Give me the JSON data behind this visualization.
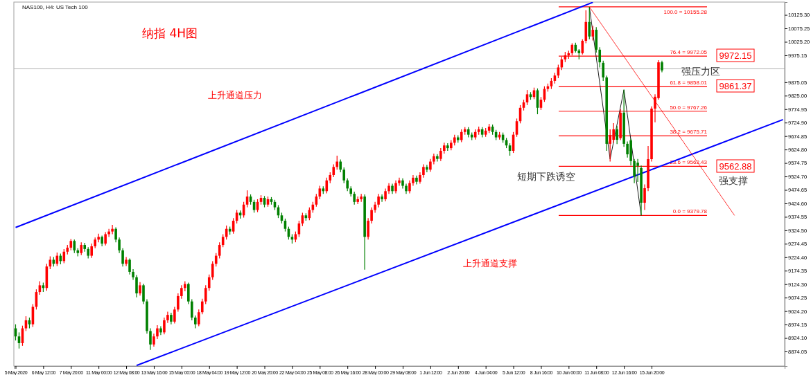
{
  "chart_data": {
    "type": "candlestick",
    "title": "纳指 4H图",
    "subtitle": "NAS100, H4: US Tech 100",
    "categories": [
      "5 May 2020",
      null,
      null,
      null,
      null,
      null,
      null,
      null,
      "6 May 12:00",
      null,
      null,
      null,
      null,
      null,
      null,
      null,
      "7 May 20:00",
      null,
      null,
      null,
      null,
      null,
      null,
      null,
      "11 May 00:00",
      null,
      null,
      null,
      null,
      null,
      null,
      null,
      "12 May 08:00",
      null,
      null,
      null,
      null,
      null,
      null,
      null,
      "13 May 16:00",
      null,
      null,
      null,
      null,
      null,
      null,
      null,
      "15 May 00:00",
      null,
      null,
      null,
      null,
      null,
      null,
      null,
      "18 May 04:00",
      null,
      null,
      null,
      null,
      null,
      null,
      null,
      "19 May 12:00",
      null,
      null,
      null,
      null,
      null,
      null,
      null,
      "20 May 20:00",
      null,
      null,
      null,
      null,
      null,
      null,
      null,
      "22 May 04:00",
      null,
      null,
      null,
      null,
      null,
      null,
      null,
      "25 May 08:00",
      null,
      null,
      null,
      null,
      null,
      null,
      null,
      "26 May 16:00",
      null,
      null,
      null,
      null,
      null,
      null,
      null,
      "28 May 00:00",
      null,
      null,
      null,
      null,
      null,
      null,
      null,
      "29 May 08:00",
      null,
      null,
      null,
      null,
      null,
      null,
      null,
      "1 Jun 12:00",
      null,
      null,
      null,
      null,
      null,
      null,
      null,
      "2 Jun 20:00",
      null,
      null,
      null,
      null,
      null,
      null,
      null,
      "4 Jun 04:00",
      null,
      null,
      null,
      null,
      null,
      null,
      null,
      "5 Jun 12:00",
      null,
      null,
      null,
      null,
      null,
      null,
      null,
      "8 Jun 16:00",
      null,
      null,
      null,
      null,
      null,
      null,
      null,
      "10 Jun 00:00",
      null,
      null,
      null,
      null,
      null,
      null,
      null,
      "11 Jun 08:00",
      null,
      null,
      null,
      null,
      null,
      null,
      null,
      "12 Jun 16:00",
      null,
      null,
      null,
      null,
      null,
      null,
      null,
      "15 Jun 20:00",
      null,
      null,
      null,
      null,
      null,
      null,
      null,
      null,
      null,
      null,
      null,
      null,
      null,
      null,
      null,
      null,
      null,
      null,
      null,
      null,
      null,
      null,
      null,
      null,
      null,
      null,
      null,
      null,
      null,
      null,
      null,
      null,
      null,
      null,
      null,
      null,
      null,
      null
    ],
    "ohlc": [
      [
        8960,
        8975,
        8915,
        8930
      ],
      [
        8930,
        8945,
        8885,
        8905
      ],
      [
        8905,
        8970,
        8895,
        8960
      ],
      [
        8960,
        9005,
        8950,
        8990
      ],
      [
        8990,
        9000,
        8960,
        8975
      ],
      [
        8975,
        9050,
        8965,
        9040
      ],
      [
        9040,
        9105,
        9030,
        9095
      ],
      [
        9095,
        9135,
        9085,
        9120
      ],
      [
        9120,
        9130,
        9095,
        9110
      ],
      [
        9110,
        9200,
        9100,
        9190
      ],
      [
        9190,
        9228,
        9180,
        9215
      ],
      [
        9215,
        9225,
        9190,
        9200
      ],
      [
        9200,
        9242,
        9192,
        9230
      ],
      [
        9230,
        9238,
        9198,
        9210
      ],
      [
        9210,
        9255,
        9202,
        9245
      ],
      [
        9245,
        9270,
        9235,
        9260
      ],
      [
        9260,
        9292,
        9250,
        9285
      ],
      [
        9285,
        9290,
        9240,
        9250
      ],
      [
        9250,
        9258,
        9228,
        9240
      ],
      [
        9240,
        9280,
        9232,
        9270
      ],
      [
        9270,
        9278,
        9245,
        9255
      ],
      [
        9255,
        9262,
        9220,
        9230
      ],
      [
        9230,
        9275,
        9222,
        9265
      ],
      [
        9265,
        9298,
        9258,
        9290
      ],
      [
        9290,
        9312,
        9280,
        9300
      ],
      [
        9300,
        9305,
        9265,
        9275
      ],
      [
        9275,
        9318,
        9268,
        9310
      ],
      [
        9310,
        9330,
        9300,
        9320
      ],
      [
        9320,
        9345,
        9310,
        9330
      ],
      [
        9330,
        9336,
        9280,
        9290
      ],
      [
        9290,
        9298,
        9240,
        9250
      ],
      [
        9250,
        9258,
        9190,
        9200
      ],
      [
        9200,
        9225,
        9192,
        9215
      ],
      [
        9215,
        9220,
        9160,
        9170
      ],
      [
        9170,
        9180,
        9140,
        9150
      ],
      [
        9150,
        9158,
        9075,
        9090
      ],
      [
        9090,
        9132,
        9082,
        9120
      ],
      [
        9120,
        9126,
        9050,
        9060
      ],
      [
        9060,
        9068,
        8940,
        8950
      ],
      [
        8950,
        8960,
        8880,
        8900
      ],
      [
        8900,
        8940,
        8892,
        8930
      ],
      [
        8930,
        8972,
        8920,
        8960
      ],
      [
        8960,
        8968,
        8935,
        8945
      ],
      [
        8945,
        9000,
        8938,
        8990
      ],
      [
        8990,
        9022,
        8980,
        9010
      ],
      [
        9010,
        9018,
        8975,
        8985
      ],
      [
        8985,
        9040,
        8978,
        9030
      ],
      [
        9030,
        9090,
        9022,
        9080
      ],
      [
        9080,
        9120,
        9070,
        9110
      ],
      [
        9110,
        9135,
        9098,
        9125
      ],
      [
        9125,
        9130,
        9050,
        9060
      ],
      [
        9060,
        9068,
        8990,
        9000
      ],
      [
        9000,
        9008,
        8960,
        8975
      ],
      [
        8975,
        9030,
        8968,
        9020
      ],
      [
        9020,
        9070,
        9012,
        9060
      ],
      [
        9060,
        9120,
        9050,
        9110
      ],
      [
        9110,
        9160,
        9100,
        9150
      ],
      [
        9150,
        9210,
        9140,
        9200
      ],
      [
        9200,
        9240,
        9190,
        9230
      ],
      [
        9230,
        9280,
        9220,
        9270
      ],
      [
        9270,
        9310,
        9262,
        9300
      ],
      [
        9300,
        9342,
        9290,
        9330
      ],
      [
        9330,
        9338,
        9308,
        9320
      ],
      [
        9320,
        9370,
        9312,
        9360
      ],
      [
        9360,
        9400,
        9350,
        9390
      ],
      [
        9390,
        9398,
        9368,
        9380
      ],
      [
        9380,
        9430,
        9372,
        9420
      ],
      [
        9420,
        9473,
        9410,
        9450
      ],
      [
        9450,
        9458,
        9420,
        9430
      ],
      [
        9430,
        9438,
        9390,
        9400
      ],
      [
        9400,
        9440,
        9392,
        9430
      ],
      [
        9430,
        9455,
        9420,
        9445
      ],
      [
        9445,
        9452,
        9410,
        9420
      ],
      [
        9420,
        9450,
        9412,
        9440
      ],
      [
        9440,
        9448,
        9420,
        9430
      ],
      [
        9430,
        9438,
        9400,
        9410
      ],
      [
        9410,
        9418,
        9370,
        9380
      ],
      [
        9380,
        9390,
        9350,
        9360
      ],
      [
        9360,
        9368,
        9320,
        9330
      ],
      [
        9330,
        9338,
        9290,
        9300
      ],
      [
        9300,
        9310,
        9275,
        9290
      ],
      [
        9290,
        9320,
        9280,
        9310
      ],
      [
        9310,
        9360,
        9300,
        9350
      ],
      [
        9350,
        9390,
        9340,
        9380
      ],
      [
        9380,
        9388,
        9360,
        9370
      ],
      [
        9370,
        9410,
        9362,
        9400
      ],
      [
        9400,
        9430,
        9390,
        9420
      ],
      [
        9420,
        9460,
        9412,
        9450
      ],
      [
        9450,
        9490,
        9440,
        9480
      ],
      [
        9480,
        9488,
        9460,
        9470
      ],
      [
        9470,
        9520,
        9462,
        9510
      ],
      [
        9510,
        9540,
        9500,
        9530
      ],
      [
        9530,
        9570,
        9522,
        9560
      ],
      [
        9560,
        9602,
        9550,
        9580
      ],
      [
        9580,
        9588,
        9540,
        9550
      ],
      [
        9550,
        9558,
        9500,
        9510
      ],
      [
        9510,
        9518,
        9470,
        9480
      ],
      [
        9480,
        9488,
        9450,
        9460
      ],
      [
        9460,
        9468,
        9420,
        9430
      ],
      [
        9430,
        9450,
        9422,
        9440
      ],
      [
        9440,
        9460,
        9430,
        9450
      ],
      [
        9450,
        9458,
        9178,
        9300
      ],
      [
        9300,
        9370,
        9290,
        9360
      ],
      [
        9360,
        9410,
        9350,
        9400
      ],
      [
        9400,
        9430,
        9390,
        9420
      ],
      [
        9420,
        9460,
        9410,
        9450
      ],
      [
        9450,
        9458,
        9430,
        9440
      ],
      [
        9440,
        9480,
        9432,
        9470
      ],
      [
        9470,
        9500,
        9460,
        9490
      ],
      [
        9490,
        9498,
        9460,
        9470
      ],
      [
        9470,
        9510,
        9462,
        9500
      ],
      [
        9500,
        9520,
        9490,
        9510
      ],
      [
        9510,
        9518,
        9480,
        9490
      ],
      [
        9490,
        9498,
        9460,
        9470
      ],
      [
        9470,
        9510,
        9462,
        9500
      ],
      [
        9500,
        9530,
        9490,
        9520
      ],
      [
        9520,
        9528,
        9495,
        9505
      ],
      [
        9505,
        9540,
        9498,
        9530
      ],
      [
        9530,
        9570,
        9520,
        9560
      ],
      [
        9560,
        9568,
        9540,
        9550
      ],
      [
        9550,
        9590,
        9542,
        9580
      ],
      [
        9580,
        9610,
        9570,
        9600
      ],
      [
        9600,
        9608,
        9580,
        9590
      ],
      [
        9590,
        9630,
        9582,
        9620
      ],
      [
        9620,
        9650,
        9610,
        9640
      ],
      [
        9640,
        9648,
        9620,
        9630
      ],
      [
        9630,
        9660,
        9622,
        9650
      ],
      [
        9650,
        9680,
        9640,
        9670
      ],
      [
        9670,
        9678,
        9650,
        9660
      ],
      [
        9660,
        9700,
        9652,
        9690
      ],
      [
        9690,
        9708,
        9680,
        9700
      ],
      [
        9700,
        9708,
        9670,
        9680
      ],
      [
        9680,
        9688,
        9660,
        9670
      ],
      [
        9670,
        9700,
        9662,
        9690
      ],
      [
        9690,
        9710,
        9680,
        9700
      ],
      [
        9700,
        9708,
        9670,
        9680
      ],
      [
        9680,
        9705,
        9672,
        9695
      ],
      [
        9695,
        9720,
        9686,
        9710
      ],
      [
        9710,
        9718,
        9680,
        9690
      ],
      [
        9690,
        9698,
        9660,
        9670
      ],
      [
        9670,
        9690,
        9662,
        9680
      ],
      [
        9680,
        9688,
        9650,
        9660
      ],
      [
        9660,
        9668,
        9630,
        9640
      ],
      [
        9640,
        9648,
        9602,
        9620
      ],
      [
        9620,
        9690,
        9612,
        9680
      ],
      [
        9680,
        9740,
        9672,
        9730
      ],
      [
        9730,
        9790,
        9722,
        9780
      ],
      [
        9780,
        9810,
        9770,
        9800
      ],
      [
        9800,
        9846,
        9790,
        9830
      ],
      [
        9830,
        9838,
        9810,
        9820
      ],
      [
        9820,
        9855,
        9812,
        9845
      ],
      [
        9845,
        9852,
        9756,
        9780
      ],
      [
        9780,
        9820,
        9772,
        9810
      ],
      [
        9810,
        9860,
        9802,
        9850
      ],
      [
        9850,
        9870,
        9840,
        9860
      ],
      [
        9860,
        9890,
        9850,
        9880
      ],
      [
        9880,
        9910,
        9870,
        9900
      ],
      [
        9900,
        9940,
        9890,
        9930
      ],
      [
        9930,
        9970,
        9920,
        9960
      ],
      [
        9960,
        9988,
        9950,
        9975
      ],
      [
        9975,
        9992,
        9962,
        9983
      ],
      [
        9983,
        10020,
        9975,
        10014
      ],
      [
        10014,
        10022,
        9985,
        9991
      ],
      [
        9993,
        9998,
        9960,
        9983
      ],
      [
        9983,
        10035,
        9978,
        10029
      ],
      [
        10029,
        10143,
        10020,
        10099
      ],
      [
        10099,
        10155.28,
        10035,
        10045
      ],
      [
        10045,
        10085,
        10030,
        10070
      ],
      [
        10070,
        10080,
        9985,
        9996
      ],
      [
        9996,
        10005,
        9930,
        9949
      ],
      [
        9947,
        9955,
        9880,
        9893
      ],
      [
        9893,
        9900,
        9620,
        9646
      ],
      [
        9646,
        9700,
        9580,
        9679
      ],
      [
        9661,
        9723,
        9650,
        9700
      ],
      [
        9700,
        9712,
        9645,
        9661
      ],
      [
        9667,
        9775,
        9660,
        9762
      ],
      [
        9762,
        9847,
        9635,
        9646
      ],
      [
        9646,
        9655,
        9595,
        9607
      ],
      [
        9659,
        9665,
        9565,
        9582
      ],
      [
        9582,
        9590,
        9500,
        9525
      ],
      [
        9576,
        9590,
        9504,
        9564
      ],
      [
        9556,
        9565,
        9379.78,
        9427
      ],
      [
        9427,
        9495,
        9400,
        9481
      ],
      [
        9481,
        9638,
        9470,
        9589
      ],
      [
        9589,
        9785,
        9580,
        9777
      ],
      [
        9777,
        9830,
        9726,
        9821
      ],
      [
        9816,
        9957,
        9810,
        9949
      ],
      [
        9949,
        9955,
        9912,
        9919
      ],
      null,
      null,
      null,
      null,
      null,
      null,
      null,
      null,
      null,
      null,
      null,
      null,
      null,
      null,
      null,
      null,
      null,
      null,
      null,
      null,
      null,
      null,
      null,
      null,
      null,
      null,
      null,
      null,
      null,
      null,
      null,
      null,
      null,
      null,
      null
    ],
    "series": [
      {
        "type": "line",
        "color": "#0000ff",
        "values": [
          9335,
          null,
          null,
          null,
          null,
          null,
          null,
          null,
          null,
          null,
          null,
          null,
          null,
          null,
          null,
          null,
          null,
          null,
          null,
          null,
          null,
          null,
          null,
          null,
          null,
          null,
          null,
          null,
          null,
          null,
          null,
          null,
          null,
          null,
          null,
          null,
          null,
          null,
          null,
          null,
          null,
          null,
          null,
          null,
          null,
          null,
          null,
          null,
          null,
          null,
          null,
          null,
          null,
          null,
          null,
          null,
          null,
          null,
          null,
          null,
          null,
          null,
          null,
          null,
          null,
          null,
          null,
          null,
          null,
          null,
          null,
          null,
          null,
          null,
          null,
          null,
          null,
          null,
          null,
          null,
          null,
          null,
          null,
          null,
          null,
          null,
          null,
          null,
          null,
          null,
          null,
          null,
          null,
          null,
          null,
          null,
          null,
          null,
          null,
          null,
          null,
          null,
          null,
          null,
          null,
          null,
          null,
          null,
          null,
          null,
          null,
          null,
          null,
          null,
          null,
          null,
          null,
          null,
          null,
          null,
          null,
          null,
          null,
          null,
          null,
          null,
          null,
          null,
          null,
          null,
          null,
          null,
          null,
          null,
          null,
          null,
          null,
          null,
          null,
          null,
          null,
          null,
          null,
          null,
          null,
          null,
          null,
          null,
          null,
          null,
          null,
          null,
          null,
          null,
          null,
          null,
          null,
          null,
          null,
          null,
          null,
          null,
          null,
          null,
          null,
          null,
          null,
          10172,
          null,
          null,
          null,
          null,
          null,
          null,
          null,
          null,
          null,
          null,
          null,
          null,
          null,
          null,
          null,
          null,
          null,
          null,
          null,
          null,
          null,
          null,
          null,
          null,
          null,
          null,
          null,
          null,
          null,
          null,
          null,
          null,
          null,
          null,
          null,
          null,
          null,
          null,
          null,
          null,
          null,
          null,
          null,
          null,
          null,
          null,
          null,
          null,
          null,
          null,
          null,
          null,
          null,
          null,
          null
        ]
      },
      {
        "type": "line",
        "color": "#0000ff",
        "values": [
          null,
          null,
          null,
          null,
          null,
          null,
          null,
          null,
          null,
          null,
          null,
          null,
          null,
          null,
          null,
          null,
          null,
          null,
          null,
          null,
          null,
          null,
          null,
          null,
          null,
          null,
          null,
          null,
          null,
          null,
          null,
          null,
          null,
          null,
          null,
          8822,
          null,
          null,
          null,
          null,
          null,
          null,
          null,
          null,
          null,
          null,
          null,
          null,
          null,
          null,
          null,
          null,
          null,
          null,
          null,
          null,
          null,
          null,
          null,
          null,
          null,
          null,
          null,
          null,
          null,
          null,
          null,
          null,
          null,
          null,
          null,
          null,
          null,
          null,
          null,
          null,
          null,
          null,
          null,
          null,
          null,
          null,
          null,
          null,
          null,
          null,
          null,
          null,
          null,
          null,
          null,
          null,
          null,
          null,
          null,
          null,
          null,
          null,
          null,
          null,
          null,
          null,
          null,
          null,
          null,
          null,
          null,
          null,
          null,
          null,
          null,
          null,
          null,
          null,
          null,
          null,
          null,
          null,
          null,
          null,
          null,
          null,
          null,
          null,
          null,
          null,
          null,
          null,
          null,
          null,
          null,
          null,
          null,
          null,
          null,
          null,
          null,
          null,
          null,
          null,
          null,
          null,
          null,
          null,
          null,
          null,
          null,
          null,
          null,
          null,
          null,
          null,
          null,
          null,
          null,
          null,
          null,
          null,
          null,
          null,
          null,
          null,
          null,
          null,
          null,
          null,
          null,
          null,
          null,
          null,
          null,
          null,
          null,
          null,
          null,
          null,
          null,
          null,
          null,
          null,
          null,
          null,
          null,
          null,
          null,
          null,
          null,
          null,
          null,
          null,
          null,
          null,
          null,
          null,
          null,
          null,
          null,
          null,
          null,
          null,
          null,
          null,
          null,
          null,
          null,
          null,
          null,
          null,
          null,
          null,
          null,
          null,
          null,
          null,
          null,
          null,
          null,
          null,
          null,
          null,
          null,
          null,
          9736
        ]
      },
      {
        "type": "line",
        "color": "#000000",
        "values": [
          null,
          null,
          null,
          null,
          null,
          null,
          null,
          null,
          null,
          null,
          null,
          null,
          null,
          null,
          null,
          null,
          null,
          null,
          null,
          null,
          null,
          null,
          null,
          null,
          null,
          null,
          null,
          null,
          null,
          null,
          null,
          null,
          null,
          null,
          null,
          null,
          null,
          null,
          null,
          null,
          null,
          null,
          null,
          null,
          null,
          null,
          null,
          null,
          null,
          null,
          null,
          null,
          null,
          null,
          null,
          null,
          null,
          null,
          null,
          null,
          null,
          null,
          null,
          null,
          null,
          null,
          null,
          null,
          null,
          null,
          null,
          null,
          null,
          null,
          null,
          null,
          null,
          null,
          null,
          null,
          null,
          null,
          null,
          null,
          null,
          null,
          null,
          null,
          null,
          null,
          null,
          null,
          null,
          null,
          null,
          null,
          null,
          null,
          null,
          null,
          null,
          null,
          null,
          null,
          null,
          null,
          null,
          null,
          null,
          null,
          null,
          null,
          null,
          null,
          null,
          null,
          null,
          null,
          null,
          null,
          null,
          null,
          null,
          null,
          null,
          null,
          null,
          null,
          null,
          null,
          null,
          null,
          null,
          null,
          null,
          null,
          null,
          null,
          null,
          null,
          null,
          null,
          null,
          null,
          null,
          null,
          null,
          null,
          null,
          null,
          null,
          null,
          null,
          null,
          null,
          null,
          null,
          null,
          null,
          null,
          null,
          null,
          null,
          null,
          null,
          null,
          10155.28,
          null,
          null,
          null,
          null,
          null,
          9589,
          null,
          null,
          null,
          9847,
          null,
          null,
          null,
          null,
          9379.78,
          null,
          null,
          null,
          null,
          null,
          null,
          null,
          null,
          null,
          null,
          null,
          null,
          null,
          null,
          null,
          null,
          null,
          null,
          null,
          null,
          null,
          null,
          null,
          null,
          null,
          null,
          null,
          null,
          null,
          null,
          null,
          null,
          null,
          null,
          null,
          null,
          null,
          null,
          null,
          null,
          null
        ]
      },
      {
        "type": "line",
        "color": "#ff0000",
        "values": [
          null,
          null,
          null,
          null,
          null,
          null,
          null,
          null,
          null,
          null,
          null,
          null,
          null,
          null,
          null,
          null,
          null,
          null,
          null,
          null,
          null,
          null,
          null,
          null,
          null,
          null,
          null,
          null,
          null,
          null,
          null,
          null,
          null,
          null,
          null,
          null,
          null,
          null,
          null,
          null,
          null,
          null,
          null,
          null,
          null,
          null,
          null,
          null,
          null,
          null,
          null,
          null,
          null,
          null,
          null,
          null,
          null,
          null,
          null,
          null,
          null,
          null,
          null,
          null,
          null,
          null,
          null,
          null,
          null,
          null,
          null,
          null,
          null,
          null,
          null,
          null,
          null,
          null,
          null,
          null,
          null,
          null,
          null,
          null,
          null,
          null,
          null,
          null,
          null,
          null,
          null,
          null,
          null,
          null,
          null,
          null,
          null,
          null,
          null,
          null,
          null,
          null,
          null,
          null,
          null,
          null,
          null,
          null,
          null,
          null,
          null,
          null,
          null,
          null,
          null,
          null,
          null,
          null,
          null,
          null,
          null,
          null,
          null,
          null,
          null,
          null,
          null,
          null,
          null,
          null,
          null,
          null,
          null,
          null,
          null,
          null,
          null,
          null,
          null,
          null,
          null,
          null,
          null,
          null,
          null,
          null,
          null,
          null,
          null,
          null,
          null,
          null,
          null,
          null,
          null,
          null,
          null,
          null,
          null,
          null,
          null,
          null,
          null,
          null,
          null,
          null,
          10155.28,
          null,
          null,
          null,
          null,
          null,
          null,
          null,
          null,
          null,
          null,
          null,
          null,
          null,
          null,
          null,
          null,
          null,
          null,
          null,
          null,
          null,
          null,
          null,
          null,
          null,
          null,
          null,
          null,
          null,
          null,
          null,
          null,
          null,
          null,
          null,
          null,
          null,
          null,
          null,
          null,
          null,
          9379.78,
          null,
          null,
          null,
          null,
          null,
          null,
          null,
          null,
          null,
          null,
          null,
          null,
          null,
          null
        ]
      }
    ],
    "ylim": [
      8820,
      10173
    ],
    "yticks": [
      {
        "value": 8874.05,
        "label": "8874.05"
      },
      {
        "value": 8924.1,
        "label": "8924.10"
      },
      {
        "value": 8974.15,
        "label": "8974.15"
      },
      {
        "value": 9024.2,
        "label": "9024.20"
      },
      {
        "value": 9074.25,
        "label": "9074.25"
      },
      {
        "value": 9124.3,
        "label": "9124.30"
      },
      {
        "value": 9174.35,
        "label": "9174.35"
      },
      {
        "value": 9224.4,
        "label": "9224.40"
      },
      {
        "value": 9274.45,
        "label": "9274.45"
      },
      {
        "value": 9324.5,
        "label": "9324.50"
      },
      {
        "value": 9374.55,
        "label": "9374.55"
      },
      {
        "value": 9424.6,
        "label": "9424.60"
      },
      {
        "value": 9474.65,
        "label": "9474.65"
      },
      {
        "value": 9524.7,
        "label": "9524.70"
      },
      {
        "value": 9574.75,
        "label": "9574.75"
      },
      {
        "value": 9624.8,
        "label": "9624.80"
      },
      {
        "value": 9674.85,
        "label": "9674.85"
      },
      {
        "value": 9724.9,
        "label": "9724.90"
      },
      {
        "value": 9774.95,
        "label": "9774.95"
      },
      {
        "value": 9825,
        "label": "9825.00"
      },
      {
        "value": 9875.05,
        "label": "9875.05"
      },
      {
        "value": 9975.15,
        "label": "9975.15"
      },
      {
        "value": 10025.2,
        "label": "10025.20"
      },
      {
        "value": 10075.25,
        "label": "10075.25"
      },
      {
        "value": 10125.3,
        "label": "10125.30"
      }
    ],
    "ref_lines": [
      {
        "axis": "y",
        "value": 10155.28,
        "label": "100.0 = 10155.28",
        "color": "#ff0000"
      },
      {
        "axis": "y",
        "value": 9972.05,
        "label": "76.4 = 9972.05",
        "color": "#ff0000"
      },
      {
        "axis": "y",
        "value": 9858.01,
        "label": "61.8 = 9858.01",
        "color": "#ff0000"
      },
      {
        "axis": "y",
        "value": 9767.26,
        "label": "50.0 = 9767.26",
        "color": "#ff0000"
      },
      {
        "axis": "y",
        "value": 9675.71,
        "label": "38.2 = 9675.71",
        "color": "#ff0000"
      },
      {
        "axis": "y",
        "value": 9562.43,
        "label": "23.6 = 9562.43",
        "color": "#ff0000"
      },
      {
        "axis": "y",
        "value": 9379.78,
        "label": "0.0 = 9379.78",
        "color": "#ff0000"
      },
      {
        "axis": "y",
        "value": 9925,
        "color": "#b0b0b0"
      }
    ],
    "annotations": [
      "上升通道压力",
      "上升通道支撑",
      "短期下跌诱空",
      "强压力区",
      "强支撑",
      "9972.15",
      "9861.37",
      "9562.88"
    ],
    "grid": false
  }
}
